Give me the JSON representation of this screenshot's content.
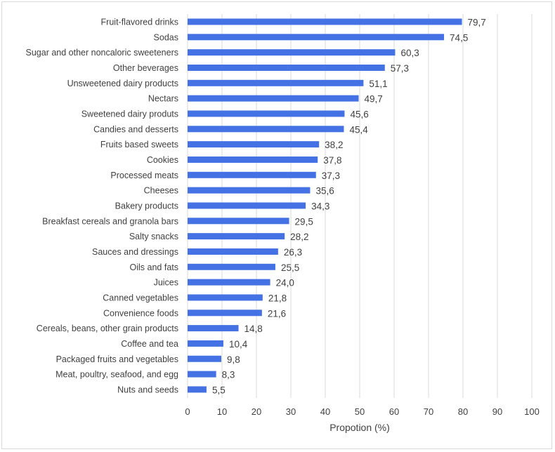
{
  "chart_data": {
    "type": "bar",
    "orientation": "horizontal",
    "title": "",
    "xlabel": "Propotion (%)",
    "ylabel": "",
    "xlim": [
      0,
      100
    ],
    "xticks": [
      "0",
      "10",
      "20",
      "30",
      "40",
      "50",
      "60",
      "70",
      "80",
      "90",
      "100"
    ],
    "grid": "vertical",
    "bar_color": "#4472e4",
    "categories": [
      "Fruit-flavored drinks",
      "Sodas",
      "Sugar and other noncaloric sweeteners",
      "Other beverages",
      "Unsweetened dairy products",
      "Nectars",
      "Sweetened dairy produts",
      "Candies and desserts",
      "Fruits based sweets",
      "Cookies",
      "Processed meats",
      "Cheeses",
      "Bakery products",
      "Breakfast cereals and granola bars",
      "Salty snacks",
      "Sauces and dressings",
      "Oils and fats",
      "Juices",
      "Canned vegetables",
      "Convenience foods",
      "Cereals, beans, other grain products",
      "Coffee and tea",
      "Packaged fruits and vegetables",
      "Meat, poultry, seafood, and egg",
      "Nuts and seeds"
    ],
    "values": [
      79.7,
      74.5,
      60.3,
      57.3,
      51.1,
      49.7,
      45.6,
      45.4,
      38.2,
      37.8,
      37.3,
      35.6,
      34.3,
      29.5,
      28.2,
      26.3,
      25.5,
      24.0,
      21.8,
      21.6,
      14.8,
      10.4,
      9.8,
      8.3,
      5.5
    ],
    "data_labels": [
      "79,7",
      "74,5",
      "60,3",
      "57,3",
      "51,1",
      "49,7",
      "45,6",
      "45,4",
      "38,2",
      "37,8",
      "37,3",
      "35,6",
      "34,3",
      "29,5",
      "28,2",
      "26,3",
      "25,5",
      "24,0",
      "21,8",
      "21,6",
      "14,8",
      "10,4",
      "9,8",
      "8,3",
      "5,5"
    ]
  }
}
